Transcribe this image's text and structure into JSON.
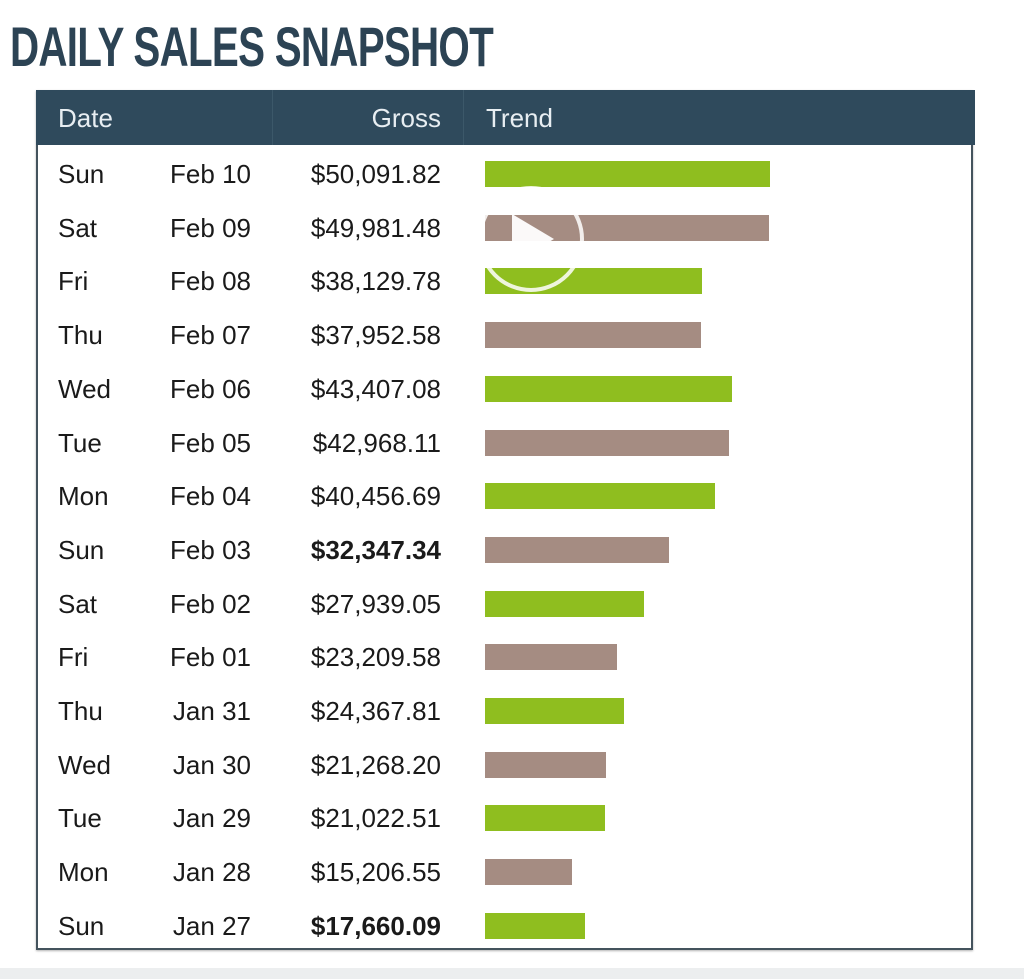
{
  "title": "DAILY SALES SNAPSHOT",
  "colors": {
    "header_bg": "#2f4a5c",
    "up": "#8fbe1f",
    "down": "#a58c82"
  },
  "chart_data": {
    "type": "bar",
    "title": "DAILY SALES SNAPSHOT",
    "columns": [
      "Date",
      "Gross",
      "Trend"
    ],
    "xlim": [
      0,
      50091.82
    ],
    "rows": [
      {
        "day": "Sun",
        "date": "Feb 10",
        "gross": "$50,091.82",
        "value": 50091.82,
        "color": "up",
        "bold": false
      },
      {
        "day": "Sat",
        "date": "Feb 09",
        "gross": "$49,981.48",
        "value": 49981.48,
        "color": "down",
        "bold": false
      },
      {
        "day": "Fri",
        "date": "Feb 08",
        "gross": "$38,129.78",
        "value": 38129.78,
        "color": "up",
        "bold": false
      },
      {
        "day": "Thu",
        "date": "Feb 07",
        "gross": "$37,952.58",
        "value": 37952.58,
        "color": "down",
        "bold": false
      },
      {
        "day": "Wed",
        "date": "Feb 06",
        "gross": "$43,407.08",
        "value": 43407.08,
        "color": "up",
        "bold": false
      },
      {
        "day": "Tue",
        "date": "Feb 05",
        "gross": "$42,968.11",
        "value": 42968.11,
        "color": "down",
        "bold": false
      },
      {
        "day": "Mon",
        "date": "Feb 04",
        "gross": "$40,456.69",
        "value": 40456.69,
        "color": "up",
        "bold": false
      },
      {
        "day": "Sun",
        "date": "Feb 03",
        "gross": "$32,347.34",
        "value": 32347.34,
        "color": "down",
        "bold": true
      },
      {
        "day": "Sat",
        "date": "Feb 02",
        "gross": "$27,939.05",
        "value": 27939.05,
        "color": "up",
        "bold": false
      },
      {
        "day": "Fri",
        "date": "Feb 01",
        "gross": "$23,209.58",
        "value": 23209.58,
        "color": "down",
        "bold": false
      },
      {
        "day": "Thu",
        "date": "Jan 31",
        "gross": "$24,367.81",
        "value": 24367.81,
        "color": "up",
        "bold": false
      },
      {
        "day": "Wed",
        "date": "Jan 30",
        "gross": "$21,268.20",
        "value": 21268.2,
        "color": "down",
        "bold": false
      },
      {
        "day": "Tue",
        "date": "Jan 29",
        "gross": "$21,022.51",
        "value": 21022.51,
        "color": "up",
        "bold": false
      },
      {
        "day": "Mon",
        "date": "Jan 28",
        "gross": "$15,206.55",
        "value": 15206.55,
        "color": "down",
        "bold": false
      },
      {
        "day": "Sun",
        "date": "Jan 27",
        "gross": "$17,660.09",
        "value": 17660.09,
        "color": "up",
        "bold": true
      }
    ]
  }
}
